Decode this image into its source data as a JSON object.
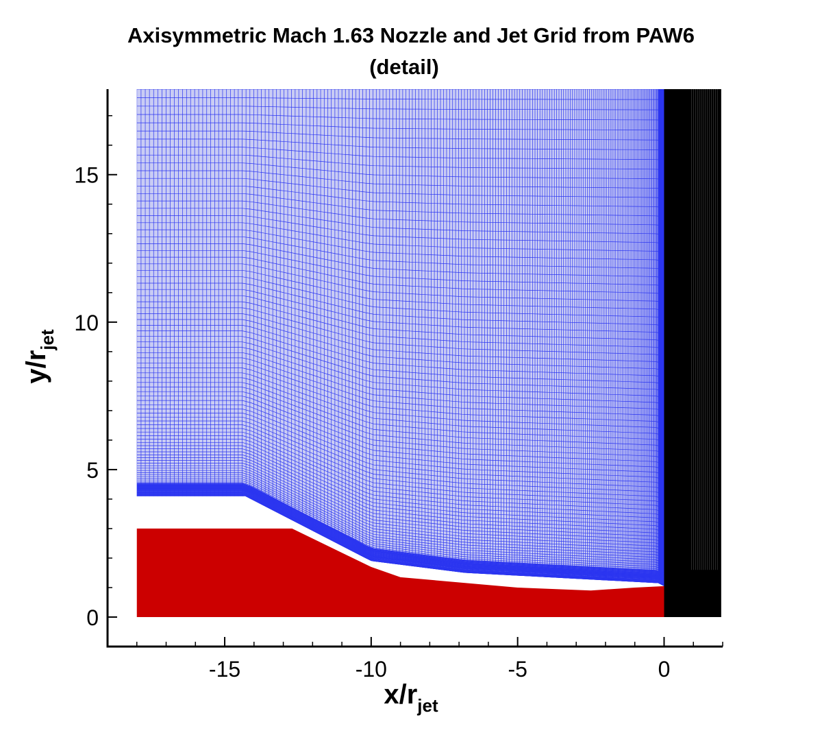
{
  "chart_data": {
    "type": "grid",
    "title": "Axisymmetric Mach 1.63 Nozzle and Jet Grid from PAW6",
    "subtitle": "(detail)",
    "xlabel": {
      "text": "x/r",
      "sub": "jet"
    },
    "ylabel": {
      "text": "y/r",
      "sub": "jet"
    },
    "xlim": [
      -19,
      2
    ],
    "ylim": [
      -1,
      17.9
    ],
    "xticks": [
      -15,
      -10,
      -5,
      0
    ],
    "yticks": [
      0,
      5,
      10,
      15
    ],
    "xminor": [
      -19,
      -18,
      -17,
      -16,
      -14,
      -13,
      -12,
      -11,
      -9,
      -8,
      -7,
      -6,
      -4,
      -3,
      -2,
      -1,
      1,
      2
    ],
    "yminor": [
      -1,
      1,
      2,
      3,
      4,
      6,
      7,
      8,
      9,
      11,
      12,
      13,
      14,
      16,
      17
    ],
    "zones": [
      {
        "color": "#2b35f0",
        "fill": "#c9ccf4",
        "x": [
          -18,
          -14.3,
          -10,
          -6.8,
          -0.2,
          0
        ],
        "lower": [
          4.1,
          4.1,
          1.9,
          1.5,
          1.15,
          1.05
        ],
        "upper": [
          17.9,
          17.9,
          17.9,
          17.9,
          17.9,
          17.9
        ]
      },
      {
        "color": "#cc0000",
        "fill": "#cc0000",
        "x": [
          -18,
          -12.7,
          -10,
          -9,
          -5,
          -2.5,
          -1,
          0
        ],
        "lower": [
          0,
          0,
          0,
          0,
          0,
          0,
          0,
          0
        ],
        "upper": [
          3,
          3,
          1.7,
          1.35,
          1.0,
          0.9,
          1.0,
          1.05
        ]
      },
      {
        "color": "#000000",
        "fill": "#000000",
        "x": [
          0,
          1.95
        ],
        "lower": [
          0,
          0
        ],
        "upper": [
          17.9,
          17.9
        ]
      }
    ]
  }
}
